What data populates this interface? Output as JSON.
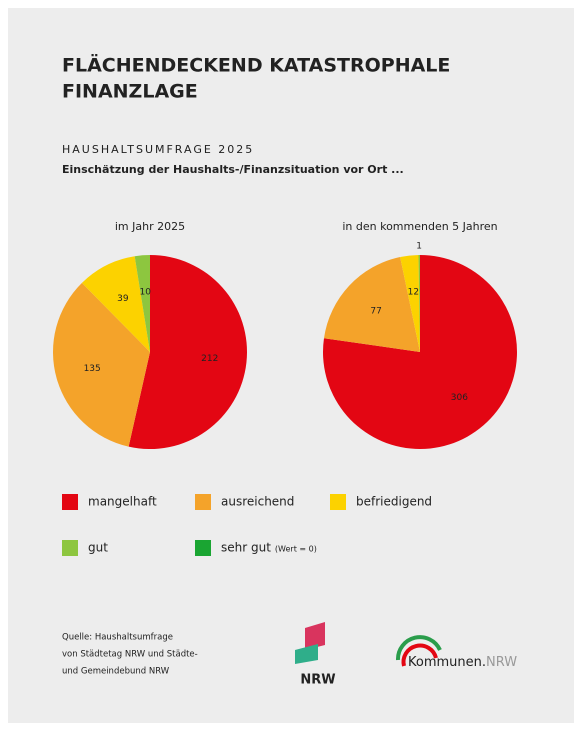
{
  "header": {
    "title": [
      "FLÄCHENDECKEND KATASTROPHALE",
      "FINANZLAGE"
    ],
    "kicker": "HAUSHALTSUMFRAGE 2025",
    "subtitle": "Einschätzung der Haushalts-/Finanzsituation vor Ort ..."
  },
  "chart_data": [
    {
      "type": "pie",
      "title": "im Jahr 2025",
      "categories": [
        "mangelhaft",
        "ausreichend",
        "befriedigend",
        "gut",
        "sehr gut"
      ],
      "values": [
        212,
        135,
        39,
        10,
        0
      ],
      "colors": [
        "#e30613",
        "#f4a32a",
        "#fcd200",
        "#8dc63f",
        "#1aa532"
      ]
    },
    {
      "type": "pie",
      "title": "in den kommenden 5 Jahren",
      "categories": [
        "mangelhaft",
        "ausreichend",
        "befriedigend",
        "gut",
        "sehr gut"
      ],
      "values": [
        306,
        77,
        12,
        1,
        0
      ],
      "colors": [
        "#e30613",
        "#f4a32a",
        "#fcd200",
        "#8dc63f",
        "#1aa532"
      ]
    }
  ],
  "legend_note": "(Wert = 0)",
  "footer": {
    "source": [
      "Quelle: Haushaltsumfrage",
      "von Städtetag NRW und Städte-",
      "und Gemeindebund NRW"
    ],
    "logo1": "NRW",
    "logo2_a": "Kommunen.",
    "logo2_b": "NRW"
  }
}
